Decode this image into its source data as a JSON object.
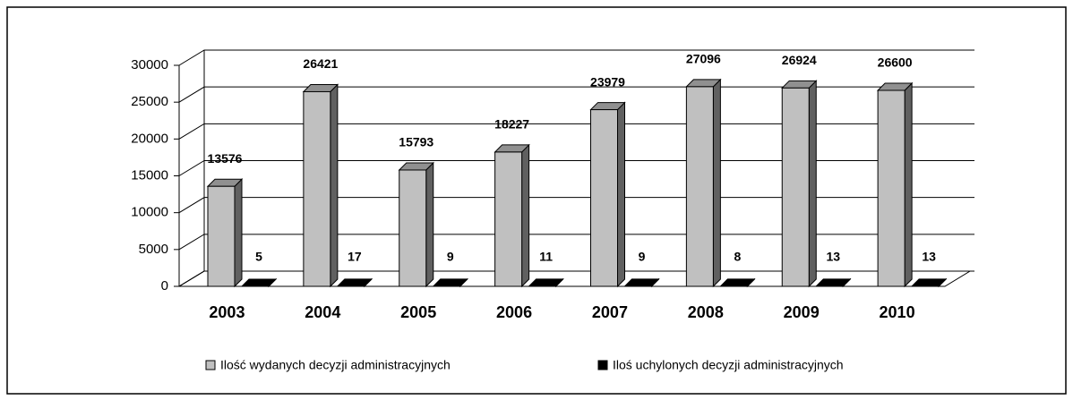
{
  "chart_data": {
    "type": "bar3d",
    "categories": [
      "2003",
      "2004",
      "2005",
      "2006",
      "2007",
      "2008",
      "2009",
      "2010"
    ],
    "series": [
      {
        "name": "Ilość wydanych decyzji administracyjnych",
        "color": "#c0c0c0",
        "values": [
          13576,
          26421,
          15793,
          18227,
          23979,
          27096,
          26924,
          26600
        ]
      },
      {
        "name": "Iloś uchylonych decyzji administracyjnych",
        "color": "#000000",
        "values": [
          5,
          17,
          9,
          11,
          9,
          8,
          13,
          13
        ]
      }
    ],
    "ylim": [
      0,
      30000
    ],
    "yticks": [
      0,
      5000,
      10000,
      15000,
      20000,
      25000,
      30000
    ],
    "grid": true,
    "legend": "bottom"
  }
}
